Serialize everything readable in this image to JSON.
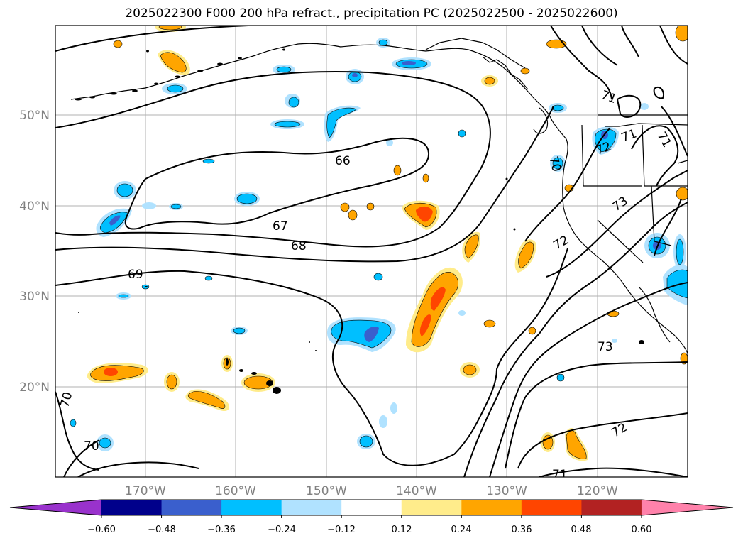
{
  "title": "2025022300 F000 200 hPa refract., precipitation PC (2025022500 - 2025022600)",
  "map": {
    "projection": "PlateCarree",
    "lon_ticks": [
      "170°W",
      "160°W",
      "150°W",
      "140°W",
      "130°W",
      "120°W"
    ],
    "lat_ticks": [
      "50°N",
      "40°N",
      "30°N",
      "20°N"
    ],
    "gridlines": true,
    "coastlines": true,
    "region": "North-East Pacific / North America west coast"
  },
  "contours": {
    "variable": "200 hPa refractivity",
    "color": "#000000",
    "labels": [
      "66",
      "67",
      "68",
      "69",
      "70",
      "70",
      "70",
      "71",
      "71",
      "71",
      "71",
      "72",
      "72",
      "72",
      "73",
      "73"
    ]
  },
  "colorbar": {
    "orientation": "horizontal",
    "extend": "both",
    "tick_labels": [
      "−0.60",
      "−0.48",
      "−0.36",
      "−0.24",
      "−0.12",
      "0.12",
      "0.24",
      "0.36",
      "0.48",
      "0.60"
    ],
    "colors": [
      "#9932cc",
      "#00008b",
      "#3a5fcd",
      "#00bfff",
      "#b0e2ff",
      "#ffffff",
      "#ffec8b",
      "#ffa500",
      "#ff4500",
      "#b22222",
      "#ff82ab"
    ]
  }
}
